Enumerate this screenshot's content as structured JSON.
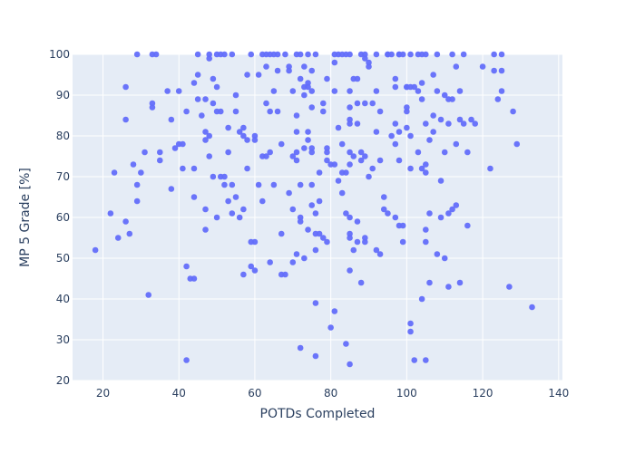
{
  "chart_data": {
    "type": "scatter",
    "title": "",
    "xlabel": "POTDs Completed",
    "ylabel": "MP 5 Grade [%]",
    "xlim": [
      12,
      141
    ],
    "ylim": [
      20,
      100
    ],
    "x_ticks": [
      20,
      40,
      60,
      80,
      100,
      120,
      140
    ],
    "y_ticks": [
      20,
      30,
      40,
      50,
      60,
      70,
      80,
      90,
      100
    ],
    "grid": true,
    "legend": "none",
    "colors": {
      "marker": "#636efa",
      "plot_bg": "#e5ecf6",
      "axis_text": "#2a3f5f"
    },
    "points": [
      [
        18,
        52
      ],
      [
        22,
        61
      ],
      [
        23,
        71
      ],
      [
        24,
        55
      ],
      [
        26,
        92
      ],
      [
        26,
        84
      ],
      [
        26,
        59
      ],
      [
        27,
        56
      ],
      [
        28,
        73
      ],
      [
        29,
        68
      ],
      [
        29,
        64
      ],
      [
        29,
        100
      ],
      [
        30,
        71
      ],
      [
        31,
        76
      ],
      [
        32,
        41
      ],
      [
        33,
        88
      ],
      [
        33,
        87
      ],
      [
        33,
        100
      ],
      [
        34,
        100
      ],
      [
        35,
        76
      ],
      [
        35,
        74
      ],
      [
        37,
        91
      ],
      [
        38,
        84
      ],
      [
        38,
        67
      ],
      [
        39,
        77
      ],
      [
        40,
        91
      ],
      [
        40,
        78
      ],
      [
        41,
        78
      ],
      [
        41,
        72
      ],
      [
        42,
        86
      ],
      [
        42,
        48
      ],
      [
        42,
        25
      ],
      [
        43,
        45
      ],
      [
        44,
        45
      ],
      [
        44,
        65
      ],
      [
        44,
        72
      ],
      [
        44,
        93
      ],
      [
        45,
        100
      ],
      [
        45,
        95
      ],
      [
        45,
        89
      ],
      [
        46,
        85
      ],
      [
        47,
        89
      ],
      [
        47,
        81
      ],
      [
        47,
        79
      ],
      [
        47,
        62
      ],
      [
        47,
        57
      ],
      [
        48,
        100
      ],
      [
        48,
        99
      ],
      [
        48,
        80
      ],
      [
        48,
        75
      ],
      [
        49,
        94
      ],
      [
        49,
        88
      ],
      [
        49,
        70
      ],
      [
        50,
        92
      ],
      [
        50,
        86
      ],
      [
        50,
        60
      ],
      [
        50,
        100
      ],
      [
        51,
        100
      ],
      [
        51,
        86
      ],
      [
        51,
        70
      ],
      [
        52,
        100
      ],
      [
        52,
        70
      ],
      [
        52,
        68
      ],
      [
        53,
        82
      ],
      [
        53,
        76
      ],
      [
        53,
        64
      ],
      [
        54,
        100
      ],
      [
        54,
        68
      ],
      [
        54,
        61
      ],
      [
        55,
        90
      ],
      [
        55,
        86
      ],
      [
        55,
        65
      ],
      [
        56,
        81
      ],
      [
        56,
        60
      ],
      [
        57,
        82
      ],
      [
        57,
        80
      ],
      [
        57,
        62
      ],
      [
        57,
        46
      ],
      [
        58,
        95
      ],
      [
        58,
        79
      ],
      [
        58,
        72
      ],
      [
        59,
        100
      ],
      [
        59,
        54
      ],
      [
        59,
        48
      ],
      [
        60,
        80
      ],
      [
        60,
        79
      ],
      [
        60,
        54
      ],
      [
        60,
        47
      ],
      [
        61,
        95
      ],
      [
        61,
        68
      ],
      [
        62,
        100
      ],
      [
        62,
        75
      ],
      [
        62,
        64
      ],
      [
        63,
        100
      ],
      [
        63,
        97
      ],
      [
        63,
        88
      ],
      [
        63,
        75
      ],
      [
        64,
        100
      ],
      [
        64,
        86
      ],
      [
        64,
        76
      ],
      [
        64,
        49
      ],
      [
        65,
        100
      ],
      [
        65,
        91
      ],
      [
        65,
        68
      ],
      [
        66,
        100
      ],
      [
        66,
        96
      ],
      [
        66,
        86
      ],
      [
        67,
        78
      ],
      [
        67,
        56
      ],
      [
        67,
        46
      ],
      [
        68,
        100
      ],
      [
        68,
        46
      ],
      [
        69,
        97
      ],
      [
        69,
        96
      ],
      [
        69,
        66
      ],
      [
        70,
        91
      ],
      [
        70,
        75
      ],
      [
        70,
        62
      ],
      [
        70,
        49
      ],
      [
        71,
        100
      ],
      [
        71,
        85
      ],
      [
        71,
        81
      ],
      [
        71,
        76
      ],
      [
        71,
        74
      ],
      [
        71,
        51
      ],
      [
        72,
        100
      ],
      [
        72,
        94
      ],
      [
        72,
        68
      ],
      [
        72,
        60
      ],
      [
        72,
        59
      ],
      [
        72,
        28
      ],
      [
        73,
        97
      ],
      [
        73,
        92
      ],
      [
        73,
        90
      ],
      [
        73,
        77
      ],
      [
        73,
        50
      ],
      [
        74,
        100
      ],
      [
        74,
        93
      ],
      [
        74,
        92
      ],
      [
        74,
        81
      ],
      [
        74,
        79
      ],
      [
        74,
        57
      ],
      [
        75,
        96
      ],
      [
        75,
        91
      ],
      [
        75,
        87
      ],
      [
        75,
        77
      ],
      [
        75,
        76
      ],
      [
        75,
        68
      ],
      [
        75,
        63
      ],
      [
        76,
        100
      ],
      [
        76,
        61
      ],
      [
        76,
        56
      ],
      [
        76,
        52
      ],
      [
        76,
        39
      ],
      [
        76,
        26
      ],
      [
        77,
        71
      ],
      [
        77,
        64
      ],
      [
        77,
        56
      ],
      [
        78,
        88
      ],
      [
        78,
        86
      ],
      [
        78,
        55
      ],
      [
        79,
        94
      ],
      [
        79,
        77
      ],
      [
        79,
        76
      ],
      [
        79,
        74
      ],
      [
        79,
        54
      ],
      [
        80,
        73
      ],
      [
        80,
        33
      ],
      [
        81,
        100
      ],
      [
        81,
        98
      ],
      [
        81,
        91
      ],
      [
        81,
        73
      ],
      [
        81,
        37
      ],
      [
        82,
        100
      ],
      [
        82,
        82
      ],
      [
        82,
        69
      ],
      [
        83,
        100
      ],
      [
        83,
        78
      ],
      [
        83,
        71
      ],
      [
        83,
        66
      ],
      [
        84,
        100
      ],
      [
        84,
        71
      ],
      [
        84,
        61
      ],
      [
        84,
        29
      ],
      [
        85,
        100
      ],
      [
        85,
        91
      ],
      [
        85,
        87
      ],
      [
        85,
        84
      ],
      [
        85,
        83
      ],
      [
        85,
        76
      ],
      [
        85,
        73
      ],
      [
        85,
        60
      ],
      [
        85,
        56
      ],
      [
        85,
        55
      ],
      [
        85,
        47
      ],
      [
        85,
        24
      ],
      [
        86,
        94
      ],
      [
        86,
        75
      ],
      [
        86,
        52
      ],
      [
        87,
        94
      ],
      [
        87,
        88
      ],
      [
        87,
        83
      ],
      [
        87,
        59
      ],
      [
        87,
        54
      ],
      [
        88,
        100
      ],
      [
        88,
        76
      ],
      [
        88,
        74
      ],
      [
        88,
        44
      ],
      [
        89,
        100
      ],
      [
        89,
        99
      ],
      [
        89,
        88
      ],
      [
        89,
        75
      ],
      [
        89,
        55
      ],
      [
        89,
        54
      ],
      [
        90,
        98
      ],
      [
        90,
        97
      ],
      [
        90,
        70
      ],
      [
        91,
        88
      ],
      [
        91,
        72
      ],
      [
        92,
        100
      ],
      [
        92,
        91
      ],
      [
        92,
        81
      ],
      [
        92,
        52
      ],
      [
        93,
        86
      ],
      [
        93,
        74
      ],
      [
        93,
        51
      ],
      [
        94,
        65
      ],
      [
        94,
        62
      ],
      [
        95,
        100
      ],
      [
        95,
        100
      ],
      [
        95,
        61
      ],
      [
        96,
        100
      ],
      [
        96,
        80
      ],
      [
        97,
        94
      ],
      [
        97,
        92
      ],
      [
        97,
        83
      ],
      [
        97,
        78
      ],
      [
        97,
        60
      ],
      [
        98,
        100
      ],
      [
        98,
        100
      ],
      [
        98,
        81
      ],
      [
        98,
        74
      ],
      [
        98,
        58
      ],
      [
        99,
        100
      ],
      [
        99,
        58
      ],
      [
        99,
        54
      ],
      [
        100,
        92
      ],
      [
        100,
        87
      ],
      [
        100,
        86
      ],
      [
        100,
        82
      ],
      [
        100,
        92
      ],
      [
        101,
        100
      ],
      [
        101,
        92
      ],
      [
        101,
        80
      ],
      [
        101,
        72
      ],
      [
        101,
        34
      ],
      [
        101,
        32
      ],
      [
        102,
        25
      ],
      [
        102,
        92
      ],
      [
        103,
        100
      ],
      [
        103,
        91
      ],
      [
        103,
        76
      ],
      [
        104,
        100
      ],
      [
        104,
        93
      ],
      [
        104,
        89
      ],
      [
        104,
        72
      ],
      [
        104,
        40
      ],
      [
        105,
        100
      ],
      [
        105,
        83
      ],
      [
        105,
        73
      ],
      [
        105,
        71
      ],
      [
        105,
        57
      ],
      [
        105,
        54
      ],
      [
        105,
        25
      ],
      [
        106,
        79
      ],
      [
        106,
        61
      ],
      [
        106,
        44
      ],
      [
        107,
        95
      ],
      [
        107,
        85
      ],
      [
        107,
        81
      ],
      [
        108,
        100
      ],
      [
        108,
        91
      ],
      [
        108,
        51
      ],
      [
        109,
        84
      ],
      [
        109,
        69
      ],
      [
        109,
        60
      ],
      [
        110,
        90
      ],
      [
        110,
        76
      ],
      [
        110,
        50
      ],
      [
        111,
        89
      ],
      [
        111,
        83
      ],
      [
        111,
        61
      ],
      [
        111,
        43
      ],
      [
        112,
        100
      ],
      [
        112,
        89
      ],
      [
        112,
        62
      ],
      [
        113,
        97
      ],
      [
        113,
        78
      ],
      [
        113,
        63
      ],
      [
        114,
        91
      ],
      [
        114,
        84
      ],
      [
        114,
        44
      ],
      [
        115,
        100
      ],
      [
        115,
        83
      ],
      [
        116,
        58
      ],
      [
        116,
        76
      ],
      [
        117,
        84
      ],
      [
        118,
        83
      ],
      [
        120,
        97
      ],
      [
        122,
        72
      ],
      [
        123,
        100
      ],
      [
        123,
        96
      ],
      [
        124,
        89
      ],
      [
        125,
        100
      ],
      [
        125,
        96
      ],
      [
        125,
        91
      ],
      [
        127,
        43
      ],
      [
        128,
        86
      ],
      [
        129,
        78
      ],
      [
        133,
        38
      ]
    ]
  }
}
